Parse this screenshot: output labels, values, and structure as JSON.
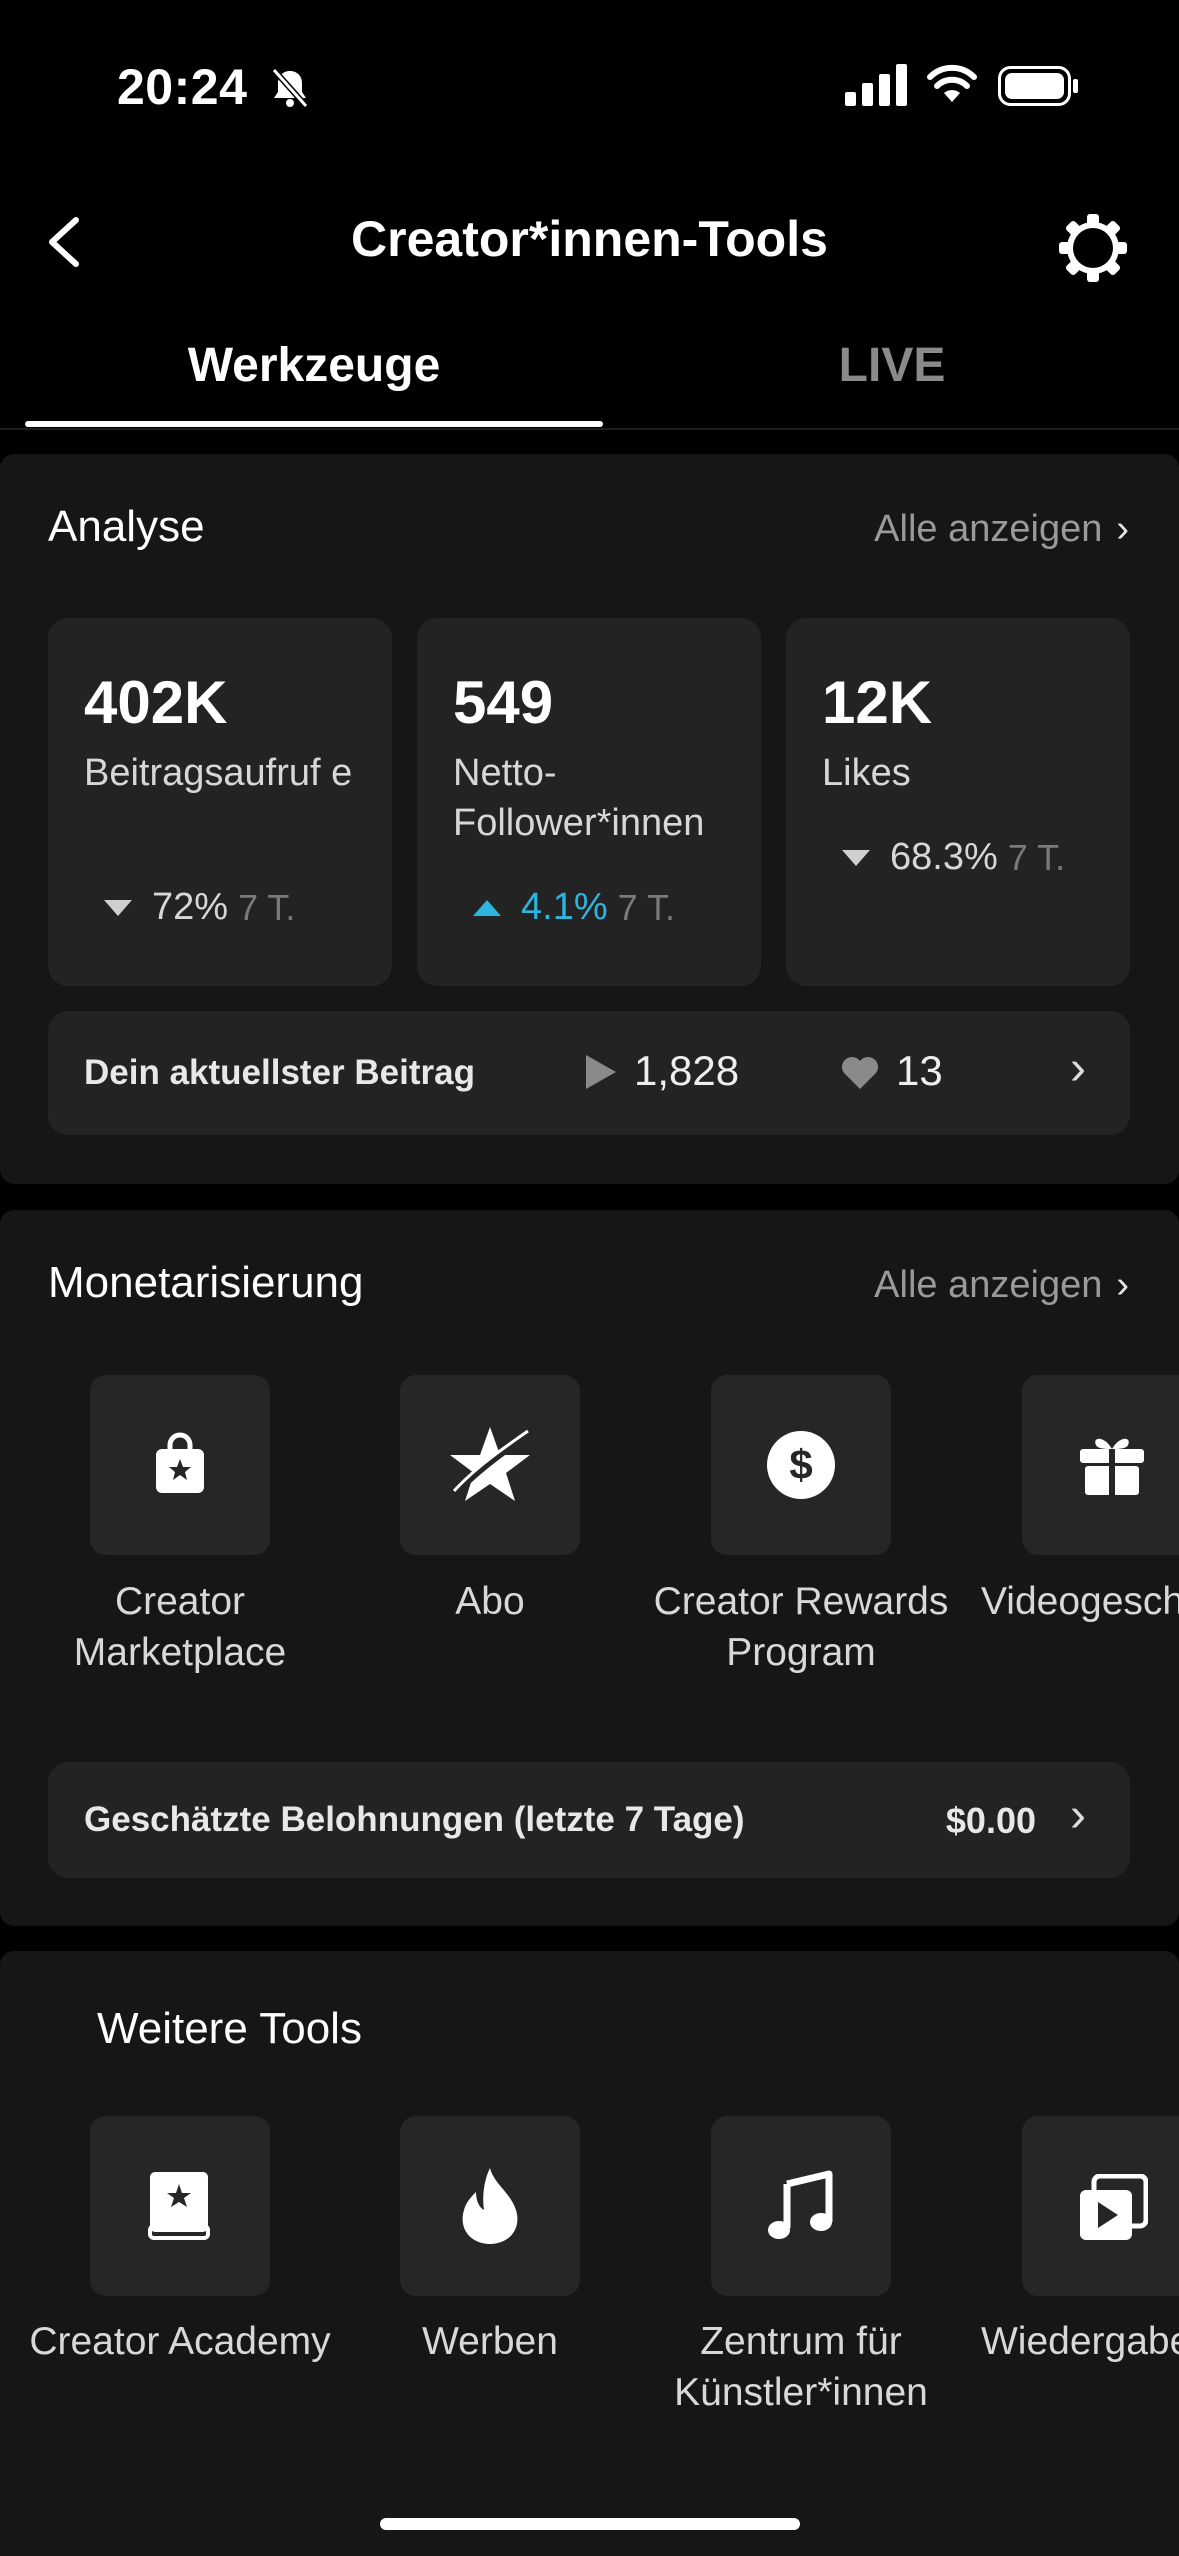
{
  "status": {
    "time": "20:24"
  },
  "nav": {
    "title": "Creator*innen-Tools"
  },
  "tabs": [
    {
      "label": "Werkzeuge",
      "active": true
    },
    {
      "label": "LIVE",
      "active": false
    }
  ],
  "analyse": {
    "title": "Analyse",
    "see_all": "Alle anzeigen",
    "stats": [
      {
        "value": "402K",
        "label": "Beitragsaufruf e",
        "change": "72%",
        "direction": "down",
        "period": "7 T."
      },
      {
        "value": "549",
        "label": "Netto- Follower*innen",
        "change": "4.1%",
        "direction": "up",
        "period": "7 T."
      },
      {
        "value": "12K",
        "label": "Likes",
        "change": "68.3%",
        "direction": "down",
        "period": "7 T."
      }
    ],
    "latest_post": {
      "label": "Dein aktuellster Beitrag",
      "views": "1,828",
      "likes": "13"
    }
  },
  "monetization": {
    "title": "Monetarisierung",
    "see_all": "Alle anzeigen",
    "tools": [
      {
        "label": "Creator Marketplace",
        "icon": "shopping-bag-star-icon"
      },
      {
        "label": "Abo",
        "icon": "subscription-star-icon"
      },
      {
        "label": "Creator Rewards Program",
        "icon": "dollar-circle-icon"
      },
      {
        "label": "Videogeschenke",
        "icon": "gift-icon"
      }
    ],
    "rewards": {
      "label": "Geschätzte Belohnungen (letzte 7 Tage)",
      "value": "$0.00"
    }
  },
  "more_tools": {
    "title": "Weitere Tools",
    "tools": [
      {
        "label": "Creator Academy",
        "icon": "book-star-icon"
      },
      {
        "label": "Werben",
        "icon": "flame-icon"
      },
      {
        "label": "Zentrum für Künstler*innen",
        "icon": "music-note-icon"
      },
      {
        "label": "Wiedergabeliste",
        "icon": "playlist-icon"
      }
    ]
  },
  "colors": {
    "background": "#000000",
    "card": "#161616",
    "tile": "#232323",
    "accent_up": "#2db5e0"
  }
}
